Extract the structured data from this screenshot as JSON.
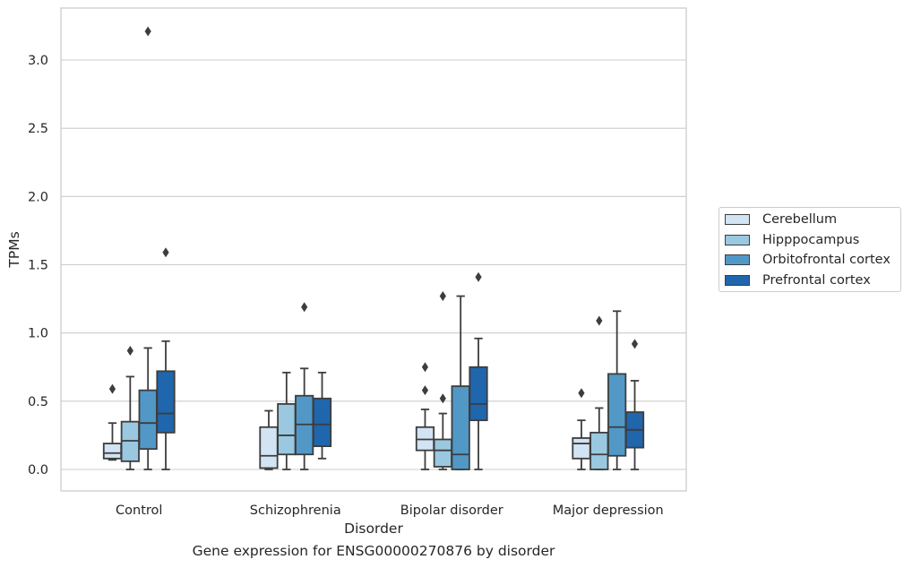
{
  "chart_data": {
    "type": "box",
    "categories": [
      "Control",
      "Schizophrenia",
      "Bipolar disorder",
      "Major depression"
    ],
    "xlabel": "Disorder",
    "ylabel": "TPMs",
    "caption": "Gene expression for ENSG00000270876 by disorder",
    "ylim": [
      -0.15,
      3.38
    ],
    "yticks": [
      0.0,
      0.5,
      1.0,
      1.5,
      2.0,
      2.5,
      3.0
    ],
    "ytick_labels": [
      "0.0",
      "0.5",
      "1.0",
      "1.5",
      "2.0",
      "2.5",
      "3.0"
    ],
    "grid": "horizontal",
    "legend_position": "right",
    "series": [
      {
        "name": "Cerebellum",
        "color": "#d2e3f3",
        "boxes": [
          {
            "whisker_low": 0.07,
            "q1": 0.08,
            "median": 0.12,
            "q3": 0.19,
            "whisker_high": 0.34,
            "outliers": [
              0.59
            ]
          },
          {
            "whisker_low": 0.0,
            "q1": 0.01,
            "median": 0.1,
            "q3": 0.31,
            "whisker_high": 0.43,
            "outliers": []
          },
          {
            "whisker_low": 0.0,
            "q1": 0.14,
            "median": 0.22,
            "q3": 0.31,
            "whisker_high": 0.44,
            "outliers": [
              0.58,
              0.75
            ]
          },
          {
            "whisker_low": 0.0,
            "q1": 0.08,
            "median": 0.19,
            "q3": 0.23,
            "whisker_high": 0.36,
            "outliers": [
              0.56
            ]
          }
        ]
      },
      {
        "name": "Hipppocampus",
        "color": "#9ac8e0",
        "boxes": [
          {
            "whisker_low": 0.0,
            "q1": 0.06,
            "median": 0.21,
            "q3": 0.35,
            "whisker_high": 0.68,
            "outliers": [
              0.87
            ]
          },
          {
            "whisker_low": 0.0,
            "q1": 0.11,
            "median": 0.25,
            "q3": 0.48,
            "whisker_high": 0.71,
            "outliers": []
          },
          {
            "whisker_low": 0.0,
            "q1": 0.02,
            "median": 0.14,
            "q3": 0.22,
            "whisker_high": 0.41,
            "outliers": [
              0.52,
              1.27
            ]
          },
          {
            "whisker_low": 0.0,
            "q1": 0.0,
            "median": 0.11,
            "q3": 0.27,
            "whisker_high": 0.45,
            "outliers": [
              1.09
            ]
          }
        ]
      },
      {
        "name": "Orbitofrontal cortex",
        "color": "#5198c7",
        "boxes": [
          {
            "whisker_low": 0.0,
            "q1": 0.15,
            "median": 0.34,
            "q3": 0.58,
            "whisker_high": 0.89,
            "outliers": [
              3.21
            ]
          },
          {
            "whisker_low": 0.0,
            "q1": 0.11,
            "median": 0.33,
            "q3": 0.54,
            "whisker_high": 0.74,
            "outliers": [
              1.19
            ]
          },
          {
            "whisker_low": 0.0,
            "q1": 0.0,
            "median": 0.11,
            "q3": 0.61,
            "whisker_high": 1.27,
            "outliers": []
          },
          {
            "whisker_low": 0.0,
            "q1": 0.1,
            "median": 0.31,
            "q3": 0.7,
            "whisker_high": 1.16,
            "outliers": []
          }
        ]
      },
      {
        "name": "Prefrontal cortex",
        "color": "#2066ac",
        "boxes": [
          {
            "whisker_low": 0.0,
            "q1": 0.27,
            "median": 0.41,
            "q3": 0.72,
            "whisker_high": 0.94,
            "outliers": [
              1.59
            ]
          },
          {
            "whisker_low": 0.08,
            "q1": 0.17,
            "median": 0.33,
            "q3": 0.52,
            "whisker_high": 0.71,
            "outliers": []
          },
          {
            "whisker_low": 0.0,
            "q1": 0.36,
            "median": 0.48,
            "q3": 0.75,
            "whisker_high": 0.96,
            "outliers": [
              1.41
            ]
          },
          {
            "whisker_low": 0.0,
            "q1": 0.16,
            "median": 0.29,
            "q3": 0.42,
            "whisker_high": 0.65,
            "outliers": [
              0.92
            ]
          }
        ]
      }
    ]
  }
}
